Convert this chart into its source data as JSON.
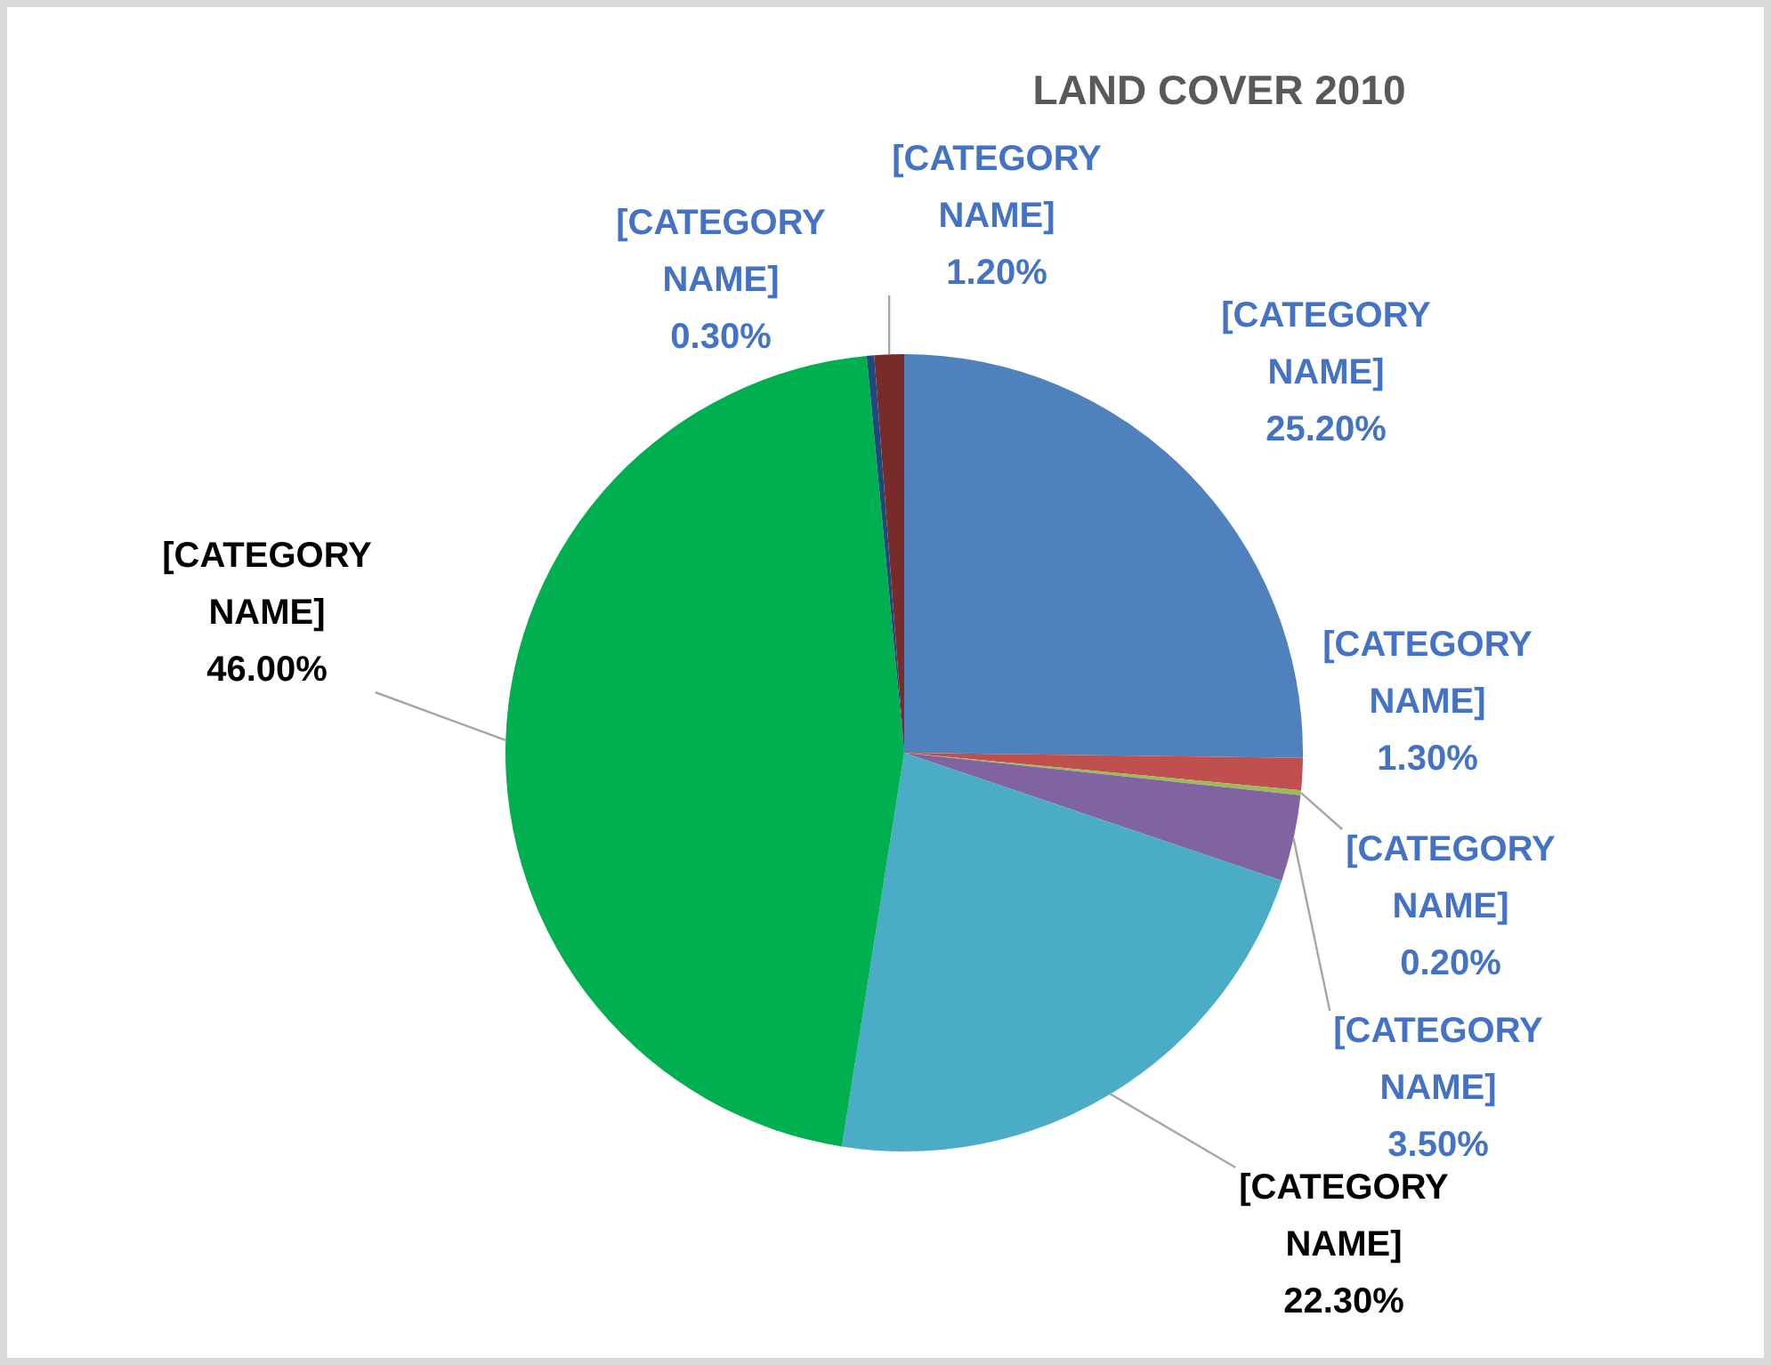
{
  "chart_data": {
    "type": "pie",
    "title": "LAND COVER 2010",
    "categories": [
      "[CATEGORY NAME]",
      "[CATEGORY NAME]",
      "[CATEGORY NAME]",
      "[CATEGORY NAME]",
      "[CATEGORY NAME]",
      "[CATEGORY NAME]",
      "[CATEGORY NAME]",
      "[CATEGORY NAME]"
    ],
    "values": [
      25.2,
      1.3,
      0.2,
      3.5,
      22.3,
      46.0,
      0.3,
      1.2
    ],
    "colors": [
      "#4f81bd",
      "#c0504d",
      "#9bbb59",
      "#8064a2",
      "#4bacc6",
      "#00b050",
      "#1f497d",
      "#772c2a"
    ],
    "value_labels": [
      "25.20%",
      "1.30%",
      "0.20%",
      "3.50%",
      "22.30%",
      "46.00%",
      "0.30%",
      "1.20%"
    ],
    "legend": false
  }
}
